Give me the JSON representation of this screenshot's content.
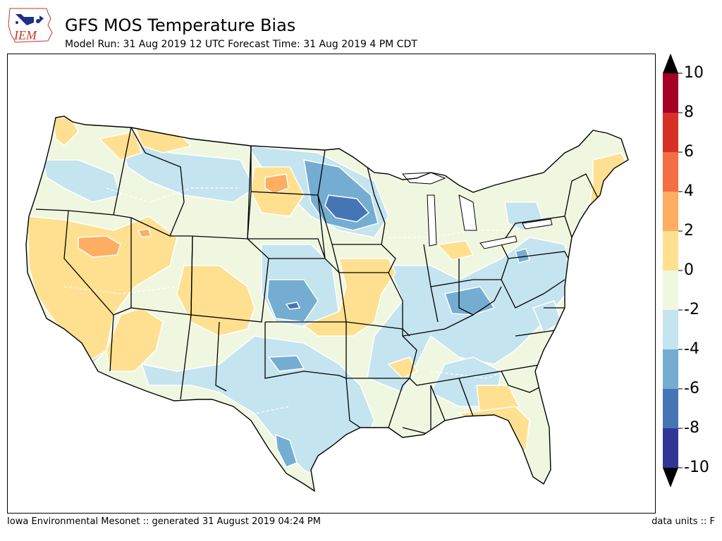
{
  "header": {
    "logo_text": "IEM",
    "title": "GFS MOS Temperature Bias",
    "subtitle": "Model Run: 31 Aug 2019 12 UTC Forecast Time: 31 Aug 2019 4 PM CDT"
  },
  "footer": {
    "credit": "Iowa Environmental Mesonet :: generated 31 August 2019 04:24 PM",
    "units": "data units :: F"
  },
  "colorbar": {
    "ticks": [
      "10",
      "8",
      "6",
      "4",
      "2",
      "0",
      "-2",
      "-4",
      "-6",
      "-8",
      "-10"
    ],
    "colors": [
      "#a50026",
      "#d73027",
      "#f46d43",
      "#fdae61",
      "#fee090",
      "#f0f7e0",
      "#c4e4ef",
      "#74add1",
      "#4575b4",
      "#313695"
    ],
    "extend_high_color": "#000000",
    "extend_low_color": "#000000"
  },
  "map": {
    "base_color": "#f0f7e0",
    "contour_line_color": "#ffffff",
    "border_color": "#000000"
  }
}
